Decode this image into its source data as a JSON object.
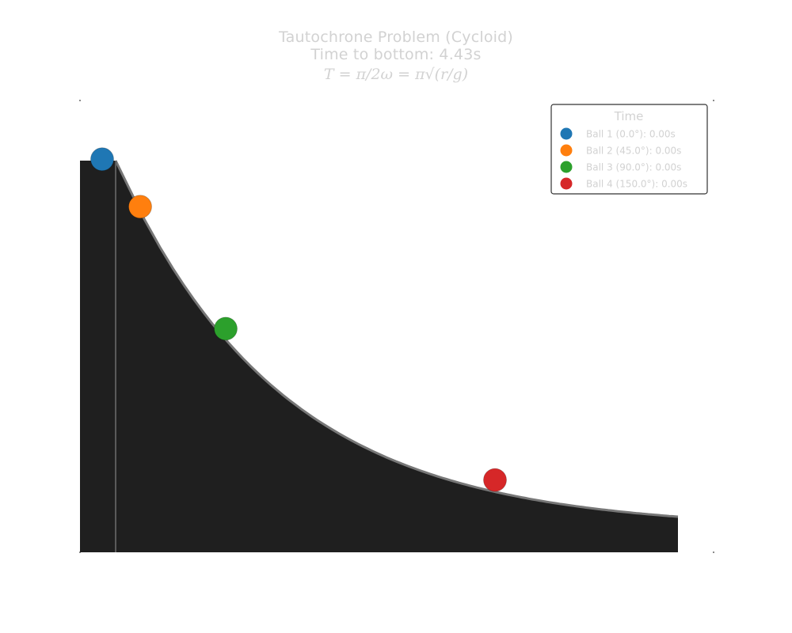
{
  "title": {
    "line1": "Tautochrone Problem (Cycloid)",
    "line2": "Time to bottom: 4.43s",
    "formula": "T = π/2ω = π√(r/g)"
  },
  "colors": {
    "ramp_fill": "#1f1f1f",
    "ramp_edge": "#777777",
    "text": "#d2d2d2"
  },
  "chart_data": {
    "type": "scatter",
    "title": "Tautochrone Problem (Cycloid)",
    "subtitle": "Time to bottom: 4.43s",
    "grid": false,
    "legend_position": "top-right",
    "legend_title": "Time",
    "xlim": [
      0,
      1
    ],
    "ylim": [
      0,
      1
    ],
    "series": [
      {
        "name": "Ball 1 (0.0°): 0.00s",
        "color": "#1f77b4",
        "start_angle_deg": 0.0,
        "time_s": 0.0,
        "x": 0.035,
        "y": 0.87
      },
      {
        "name": "Ball 2 (45.0°): 0.00s",
        "color": "#ff7f0e",
        "start_angle_deg": 45.0,
        "time_s": 0.0,
        "x": 0.095,
        "y": 0.765
      },
      {
        "name": "Ball 3 (90.0°): 0.00s",
        "color": "#2ca02c",
        "start_angle_deg": 90.0,
        "time_s": 0.0,
        "x": 0.23,
        "y": 0.495
      },
      {
        "name": "Ball 4 (150.0°): 0.00s",
        "color": "#d62728",
        "start_angle_deg": 150.0,
        "time_s": 0.0,
        "x": 0.655,
        "y": 0.16
      }
    ]
  }
}
